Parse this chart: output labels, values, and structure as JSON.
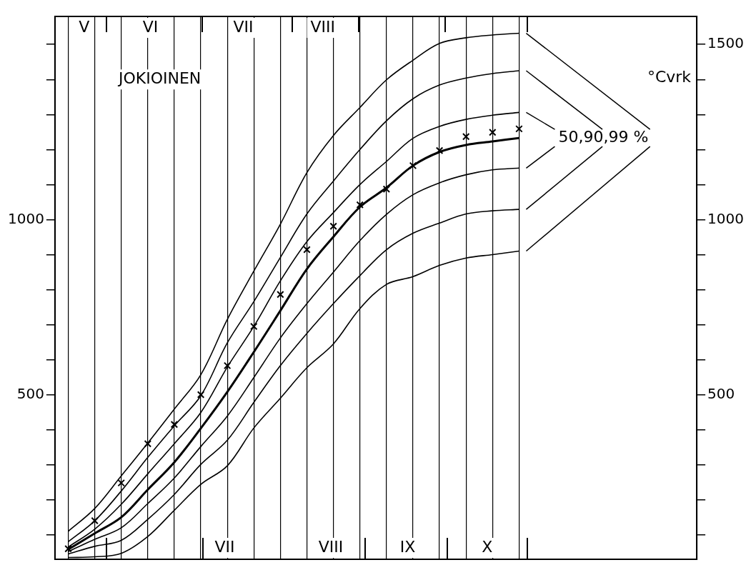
{
  "chart_data": {
    "type": "line",
    "title": "JOKIOINEN",
    "y2label": "°Cvrk",
    "categories": [
      null,
      null,
      null,
      null,
      null,
      null,
      null,
      null,
      null,
      null,
      null,
      null,
      null,
      null,
      null,
      null,
      null,
      null
    ],
    "series": [
      {
        "color": "#000000",
        "values": [
          110,
          175,
          268,
          362,
          459,
          557,
          715,
          853,
          987,
          1134,
          1240,
          1320,
          1399,
          1455,
          1503,
          1519,
          1527,
          1532
        ]
      },
      {
        "color": "#000000",
        "values": [
          80,
          140,
          225,
          321,
          411,
          497,
          648,
          766,
          892,
          1016,
          1110,
          1200,
          1282,
          1345,
          1384,
          1404,
          1417,
          1425
        ]
      },
      {
        "color": "#000000",
        "values": [
          65,
          116,
          187,
          274,
          360,
          449,
          579,
          695,
          825,
          937,
          1020,
          1100,
          1166,
          1232,
          1266,
          1286,
          1298,
          1306
        ]
      },
      {
        "color": "#000000",
        "values": [
          58,
          104,
          150,
          229,
          307,
          404,
          508,
          622,
          740,
          859,
          951,
          1036,
          1091,
          1154,
          1193,
          1213,
          1223,
          1233
        ]
      },
      {
        "color": "#000000",
        "values": [
          52,
          87,
          120,
          189,
          262,
          352,
          439,
          549,
          662,
          760,
          850,
          940,
          1015,
          1071,
          1105,
          1128,
          1142,
          1147
        ]
      },
      {
        "color": "#000000",
        "values": [
          45,
          67,
          84,
          144,
          215,
          301,
          370,
          478,
          583,
          675,
          760,
          840,
          914,
          961,
          990,
          1016,
          1025,
          1029
        ]
      },
      {
        "color": "#000000",
        "values": [
          35,
          37,
          47,
          95,
          170,
          244,
          297,
          405,
          490,
          577,
          645,
          746,
          815,
          837,
          869,
          890,
          900,
          910
        ]
      },
      {
        "type": "scatter",
        "color": "#000000",
        "marker": "cross",
        "values": [
          60,
          140,
          248,
          360,
          415,
          500,
          583,
          695,
          786,
          914,
          981,
          1042,
          1087,
          1154,
          1197,
          1237,
          1249,
          1259
        ]
      }
    ],
    "ylim": [
      30,
      1580
    ],
    "yticks": [
      {
        "value": 100,
        "label": null
      },
      {
        "value": 200,
        "label": null
      },
      {
        "value": 300,
        "label": null
      },
      {
        "value": 400,
        "label": null
      },
      500,
      {
        "value": 600,
        "label": null
      },
      {
        "value": 700,
        "label": null
      },
      {
        "value": 800,
        "label": null
      },
      {
        "value": 900,
        "label": null
      },
      1000,
      {
        "value": 1100,
        "label": null
      },
      {
        "value": 1200,
        "label": null
      },
      {
        "value": 1300,
        "label": null
      },
      {
        "value": 1400,
        "label": null
      },
      {
        "value": 1500,
        "label": null
      }
    ],
    "y2lim": [
      30,
      1580
    ],
    "y2ticks": [
      {
        "value": 100,
        "label": null
      },
      {
        "value": 200,
        "label": null
      },
      {
        "value": 300,
        "label": null
      },
      {
        "value": 400,
        "label": null
      },
      500,
      {
        "value": 600,
        "label": null
      },
      {
        "value": 700,
        "label": null
      },
      {
        "value": 800,
        "label": null
      },
      {
        "value": 900,
        "label": null
      },
      1000,
      {
        "value": 1100,
        "label": null
      },
      {
        "value": 1200,
        "label": null
      },
      {
        "value": 1300,
        "label": null
      },
      {
        "value": 1400,
        "label": null
      },
      1500
    ],
    "grid": "x",
    "legend": false,
    "annotations": [
      "50,90,99 %",
      "V",
      "VI",
      "VII",
      "VIII",
      "VII",
      "VIII",
      "IX",
      "X"
    ]
  }
}
